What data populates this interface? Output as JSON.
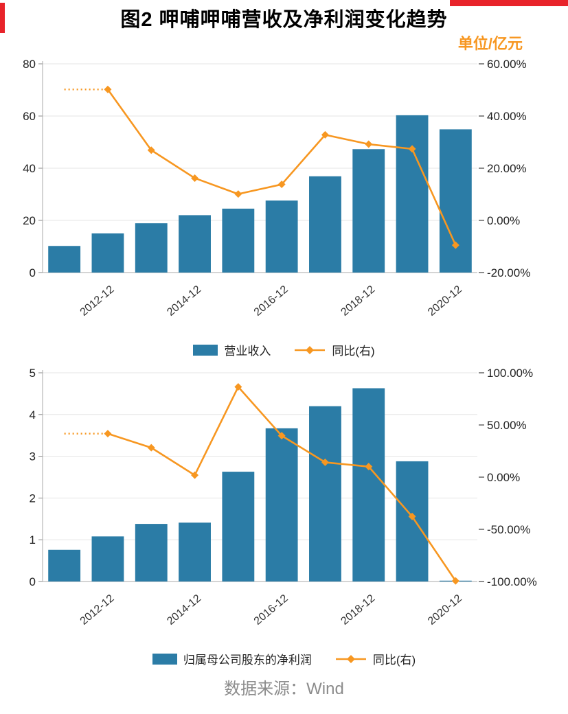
{
  "header": {
    "title": "图2 呷哺呷哺营收及净利润变化趋势",
    "unit_label": "单位/亿元"
  },
  "footer": {
    "source": "数据来源：Wind"
  },
  "colors": {
    "bar": "#2B7CA6",
    "line": "#F79721",
    "accent_red": "#E8232A",
    "unit_text": "#F79721",
    "source_text": "#8C8C8C",
    "axis_text": "#222222",
    "grid": "#E6E6E6"
  },
  "chart_data": [
    {
      "type": "bar",
      "subtype": "bar-line-combo",
      "title": "营业收入及同比增速",
      "categories": [
        "2011-12",
        "2012-12",
        "2013-12",
        "2014-12",
        "2015-12",
        "2016-12",
        "2017-12",
        "2018-12",
        "2019-12",
        "2020-12"
      ],
      "x_tick_labels": [
        "2012-12",
        "2014-12",
        "2016-12",
        "2018-12",
        "2020-12"
      ],
      "left_axis": {
        "min": 0,
        "max": 80,
        "ticks": [
          0,
          20,
          40,
          60,
          80
        ]
      },
      "right_axis": {
        "min": -20,
        "max": 60,
        "ticks": [
          -20,
          0,
          20,
          40,
          60
        ],
        "format": "percent"
      },
      "series": [
        {
          "name": "营业收入",
          "type": "bar",
          "axis": "left",
          "values": [
            10.2,
            15.0,
            18.9,
            22.0,
            24.5,
            27.6,
            36.9,
            47.3,
            60.3,
            54.9
          ]
        },
        {
          "name": "同比(右)",
          "type": "line",
          "axis": "right",
          "leading_dotted": true,
          "values": [
            null,
            50.2,
            26.9,
            16.2,
            10.1,
            13.8,
            32.8,
            29.2,
            27.4,
            -9.5
          ]
        }
      ],
      "legend": [
        "营业收入",
        "同比(右)"
      ],
      "grid": true,
      "legend_position": "bottom"
    },
    {
      "type": "bar",
      "subtype": "bar-line-combo",
      "title": "归属母公司股东的净利润及同比增速",
      "categories": [
        "2011-12",
        "2012-12",
        "2013-12",
        "2014-12",
        "2015-12",
        "2016-12",
        "2017-12",
        "2018-12",
        "2019-12",
        "2020-12"
      ],
      "x_tick_labels": [
        "2012-12",
        "2014-12",
        "2016-12",
        "2018-12",
        "2020-12"
      ],
      "left_axis": {
        "min": 0,
        "max": 5,
        "ticks": [
          0,
          1,
          2,
          3,
          4,
          5
        ]
      },
      "right_axis": {
        "min": -100,
        "max": 100,
        "ticks": [
          -100,
          -50,
          0,
          50,
          100
        ],
        "format": "percent"
      },
      "series": [
        {
          "name": "归属母公司股东的净利润",
          "type": "bar",
          "axis": "left",
          "values": [
            0.76,
            1.08,
            1.38,
            1.41,
            2.63,
            3.67,
            4.2,
            4.63,
            2.88,
            0.02
          ]
        },
        {
          "name": "同比(右)",
          "type": "line",
          "axis": "right",
          "leading_dotted": true,
          "values": [
            null,
            41.7,
            28.2,
            1.9,
            86.5,
            39.7,
            14.2,
            10.1,
            -37.7,
            -99.4
          ]
        }
      ],
      "legend": [
        "归属母公司股东的净利润",
        "同比(右)"
      ],
      "grid": true,
      "legend_position": "bottom"
    }
  ]
}
